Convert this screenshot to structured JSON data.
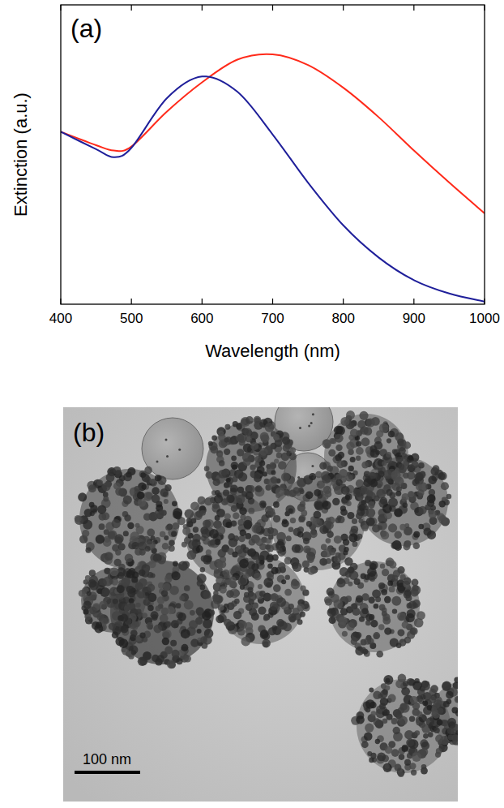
{
  "chart_data": {
    "type": "line",
    "label": "(a)",
    "x_label": "Wavelength (nm)",
    "y_label": "Extinction (a.u.)",
    "x": [
      400,
      450,
      475,
      500,
      550,
      600,
      650,
      700,
      750,
      800,
      850,
      900,
      950,
      1000
    ],
    "series": [
      {
        "color": "#ff2a1a",
        "values": [
          0.645,
          0.595,
          0.575,
          0.59,
          0.72,
          0.83,
          0.915,
          0.935,
          0.895,
          0.81,
          0.7,
          0.575,
          0.455,
          0.34
        ]
      },
      {
        "color": "#1f1f9a",
        "values": [
          0.645,
          0.58,
          0.55,
          0.585,
          0.77,
          0.852,
          0.795,
          0.635,
          0.455,
          0.295,
          0.175,
          0.09,
          0.04,
          0.01
        ]
      }
    ],
    "xlim": [
      400,
      1000
    ],
    "ylim": [
      0,
      1.12
    ],
    "xticks": [
      400,
      500,
      600,
      700,
      800,
      900,
      1000
    ],
    "tick_labels": "x",
    "grid": false
  },
  "image": {
    "label": "(b)",
    "scale_bar": "100 nm"
  }
}
